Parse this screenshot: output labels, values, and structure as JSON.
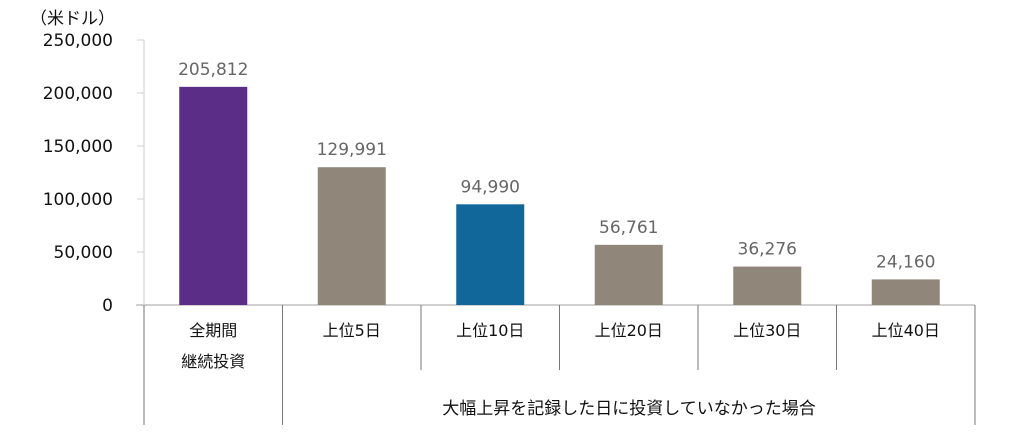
{
  "chart_data": {
    "type": "bar",
    "unit_label": "（米ドル）",
    "categories": [
      [
        "全期間",
        "継続投資"
      ],
      [
        "上位5日"
      ],
      [
        "上位10日"
      ],
      [
        "上位20日"
      ],
      [
        "上位30日"
      ],
      [
        "上位40日"
      ]
    ],
    "values": [
      205812,
      129991,
      94990,
      56761,
      36276,
      24160
    ],
    "value_labels": [
      "205,812",
      "129,991",
      "94,990",
      "56,761",
      "36,276",
      "24,160"
    ],
    "bar_colors": [
      "#5b2d86",
      "#908679",
      "#12679a",
      "#908679",
      "#908679",
      "#908679"
    ],
    "group_label": "大幅上昇を記録した日に投資していなかった場合",
    "ylim": [
      0,
      250000
    ],
    "y_ticks": [
      0,
      50000,
      100000,
      150000,
      200000,
      250000
    ],
    "y_tick_labels": [
      "0",
      "50,000",
      "100,000",
      "150,000",
      "200,000",
      "250,000"
    ],
    "grid": false
  }
}
